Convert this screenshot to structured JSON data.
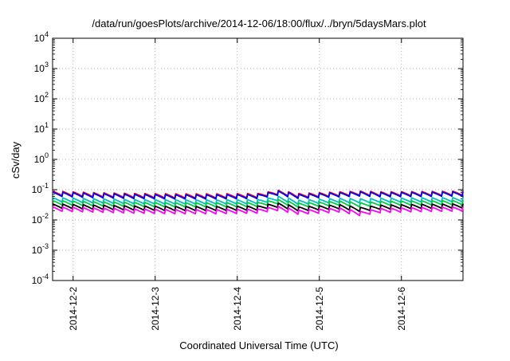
{
  "chart_data": {
    "type": "line",
    "title": "/data/run/goesPlots/archive/2014-12-06/18:00/flux/../bryn/5daysMars.plot",
    "xlabel": "Coordinated Universal Time (UTC)",
    "ylabel": "cSv/day",
    "yscale": "log",
    "ylim": [
      0.0001,
      10000
    ],
    "y_ticks": [
      {
        "base": "10",
        "exp": "-4",
        "value": 0.0001
      },
      {
        "base": "10",
        "exp": "-3",
        "value": 0.001
      },
      {
        "base": "10",
        "exp": "-2",
        "value": 0.01
      },
      {
        "base": "10",
        "exp": "-1",
        "value": 0.1
      },
      {
        "base": "10",
        "exp": "0",
        "value": 1
      },
      {
        "base": "10",
        "exp": "1",
        "value": 10
      },
      {
        "base": "10",
        "exp": "2",
        "value": 100
      },
      {
        "base": "10",
        "exp": "3",
        "value": 1000
      },
      {
        "base": "10",
        "exp": "4",
        "value": 10000
      }
    ],
    "xlim": [
      "2014-12-01 18:00",
      "2014-12-06 18:00"
    ],
    "x_ticks": [
      "2014-12-2",
      "2014-12-3",
      "2014-12-4",
      "2014-12-5",
      "2014-12-6"
    ],
    "x_tick_values": [
      "2014-12-02 00:00",
      "2014-12-03 00:00",
      "2014-12-04 00:00",
      "2014-12-05 00:00",
      "2014-12-06 00:00"
    ],
    "grid": true,
    "x": [
      "2014-12-01 18:00",
      "2014-12-02 06:00",
      "2014-12-02 18:00",
      "2014-12-03 06:00",
      "2014-12-03 18:00",
      "2014-12-04 06:00",
      "2014-12-04 09:00",
      "2014-12-04 12:00",
      "2014-12-04 18:00",
      "2014-12-05 06:00",
      "2014-12-05 12:00",
      "2014-12-05 18:00",
      "2014-12-06 06:00",
      "2014-12-06 18:00"
    ],
    "series": [
      {
        "color": "#ff0000",
        "values": [
          0.09,
          0.08,
          0.075,
          0.073,
          0.073,
          0.075,
          0.085,
          0.095,
          0.075,
          0.085,
          0.09,
          0.085,
          0.087,
          0.09
        ]
      },
      {
        "color": "#0000ff",
        "values": [
          0.084,
          0.075,
          0.07,
          0.068,
          0.068,
          0.07,
          0.08,
          0.09,
          0.07,
          0.08,
          0.085,
          0.08,
          0.082,
          0.085
        ]
      },
      {
        "color": "#00bfbf",
        "values": [
          0.055,
          0.05,
          0.047,
          0.046,
          0.046,
          0.047,
          0.053,
          0.06,
          0.045,
          0.052,
          0.05,
          0.052,
          0.054,
          0.055
        ]
      },
      {
        "color": "#00cc44",
        "values": [
          0.044,
          0.04,
          0.038,
          0.037,
          0.037,
          0.038,
          0.043,
          0.047,
          0.036,
          0.042,
          0.037,
          0.041,
          0.043,
          0.044
        ]
      },
      {
        "color": "#000000",
        "values": [
          0.034,
          0.031,
          0.029,
          0.028,
          0.028,
          0.029,
          0.033,
          0.036,
          0.027,
          0.032,
          0.026,
          0.031,
          0.033,
          0.034
        ]
      },
      {
        "color": "#ff00ff",
        "values": [
          0.027,
          0.025,
          0.023,
          0.022,
          0.022,
          0.023,
          0.026,
          0.028,
          0.021,
          0.025,
          0.019,
          0.024,
          0.026,
          0.027
        ]
      }
    ],
    "periodic_dip": {
      "period_hours": 3,
      "drop_fraction": 0.3
    }
  }
}
